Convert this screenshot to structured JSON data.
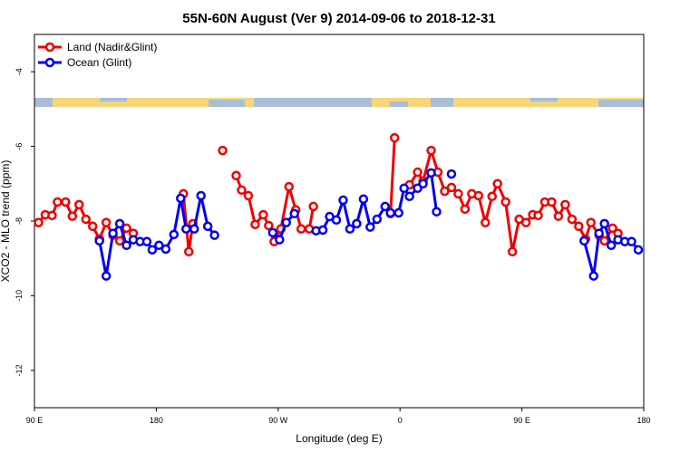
{
  "chart_data": {
    "type": "line",
    "title": "55N-60N August (Ver 9)   2014-09-06 to 2018-12-31",
    "x_label": "Longitude (deg E)",
    "y_label": "XCO2 - MLO trend (ppm)",
    "xlim": [
      90,
      540
    ],
    "ylim": [
      -13,
      -3
    ],
    "xticks": [
      {
        "value": 90,
        "label": "90 E"
      },
      180,
      {
        "value": 270,
        "label": "90 W"
      },
      {
        "value": 360,
        "label": "0"
      },
      {
        "value": 450,
        "label": "90 E"
      },
      {
        "value": 540,
        "label": "180"
      }
    ],
    "yticks": [
      -12,
      -10,
      -8,
      -6,
      -4
    ],
    "legend": "top-left",
    "series": [
      {
        "name": "Land (Nadir&Glint)",
        "color": "#ee0000",
        "x": [
          93,
          98,
          103,
          107,
          113,
          118,
          123,
          128,
          133,
          138,
          143,
          148,
          153,
          158,
          163,
          170,
          200,
          204,
          207,
          218,
          229,
          234,
          239,
          243,
          248,
          253,
          259,
          263,
          267,
          272,
          278,
          283,
          287,
          293,
          296,
          320,
          353,
          356,
          362,
          367,
          373,
          377,
          383,
          388,
          393,
          398,
          403,
          408,
          413,
          418,
          423,
          428,
          432,
          438,
          443,
          448,
          453,
          458,
          462,
          467,
          472,
          477,
          482,
          487,
          492,
          497,
          501,
          507,
          511,
          517,
          521
        ],
        "values": [
          -8.04,
          -7.83,
          -7.85,
          -7.49,
          -7.49,
          -7.87,
          -7.56,
          -7.95,
          -8.14,
          -8.48,
          -8.04,
          -8.38,
          -8.53,
          -8.19,
          -8.33,
          null,
          -7.27,
          -8.82,
          -8.07,
          null,
          -6.11,
          null,
          -6.78,
          -7.17,
          -7.32,
          -8.09,
          -7.83,
          -8.12,
          -8.55,
          -8.21,
          -7.08,
          -7.7,
          -8.21,
          -8.21,
          -7.61,
          null,
          -7.8,
          -5.77,
          null,
          -7.03,
          -6.69,
          -6.93,
          -6.11,
          -6.69,
          -7.2,
          -7.1,
          -7.27,
          -7.68,
          -7.27,
          -7.32,
          -8.04,
          -7.34,
          -7.0,
          -7.49,
          -8.82,
          -7.95,
          -8.04,
          -7.83,
          -7.85,
          -7.49,
          -7.49,
          -7.87,
          -7.56,
          -7.95,
          -8.14,
          -8.48,
          -8.04,
          -8.38,
          -8.53,
          -8.19,
          -8.33
        ]
      },
      {
        "name": "Ocean (Glint)",
        "color": "#0000ee",
        "x": [
          138,
          143,
          148,
          153,
          158,
          163,
          168,
          173,
          177,
          182,
          187,
          193,
          198,
          202,
          208,
          213,
          218,
          223,
          240,
          266,
          271,
          276,
          282,
          290,
          298,
          303,
          308,
          313,
          318,
          323,
          328,
          333,
          338,
          343,
          349,
          353,
          359,
          363,
          367,
          373,
          377,
          383,
          387,
          392,
          398,
          470,
          496,
          503,
          507,
          511,
          516,
          521,
          526,
          531,
          536
        ],
        "values": [
          -8.53,
          -9.47,
          -8.33,
          -8.07,
          -8.65,
          -8.5,
          -8.55,
          -8.55,
          -8.77,
          -8.65,
          -8.75,
          -8.36,
          -7.39,
          -8.21,
          -8.21,
          -7.32,
          -8.14,
          -8.38,
          null,
          -8.31,
          -8.5,
          -8.04,
          -7.8,
          null,
          -8.26,
          -8.24,
          -7.88,
          -7.97,
          -7.44,
          -8.21,
          -8.07,
          -7.41,
          -8.16,
          -7.95,
          -7.61,
          -7.78,
          -7.78,
          -7.12,
          -7.34,
          -7.12,
          -7.0,
          -6.71,
          -7.75,
          null,
          -6.74,
          null,
          -8.53,
          -9.47,
          -8.33,
          -8.07,
          -8.65,
          -8.5,
          -8.55,
          -8.55,
          -8.77
        ]
      }
    ]
  }
}
